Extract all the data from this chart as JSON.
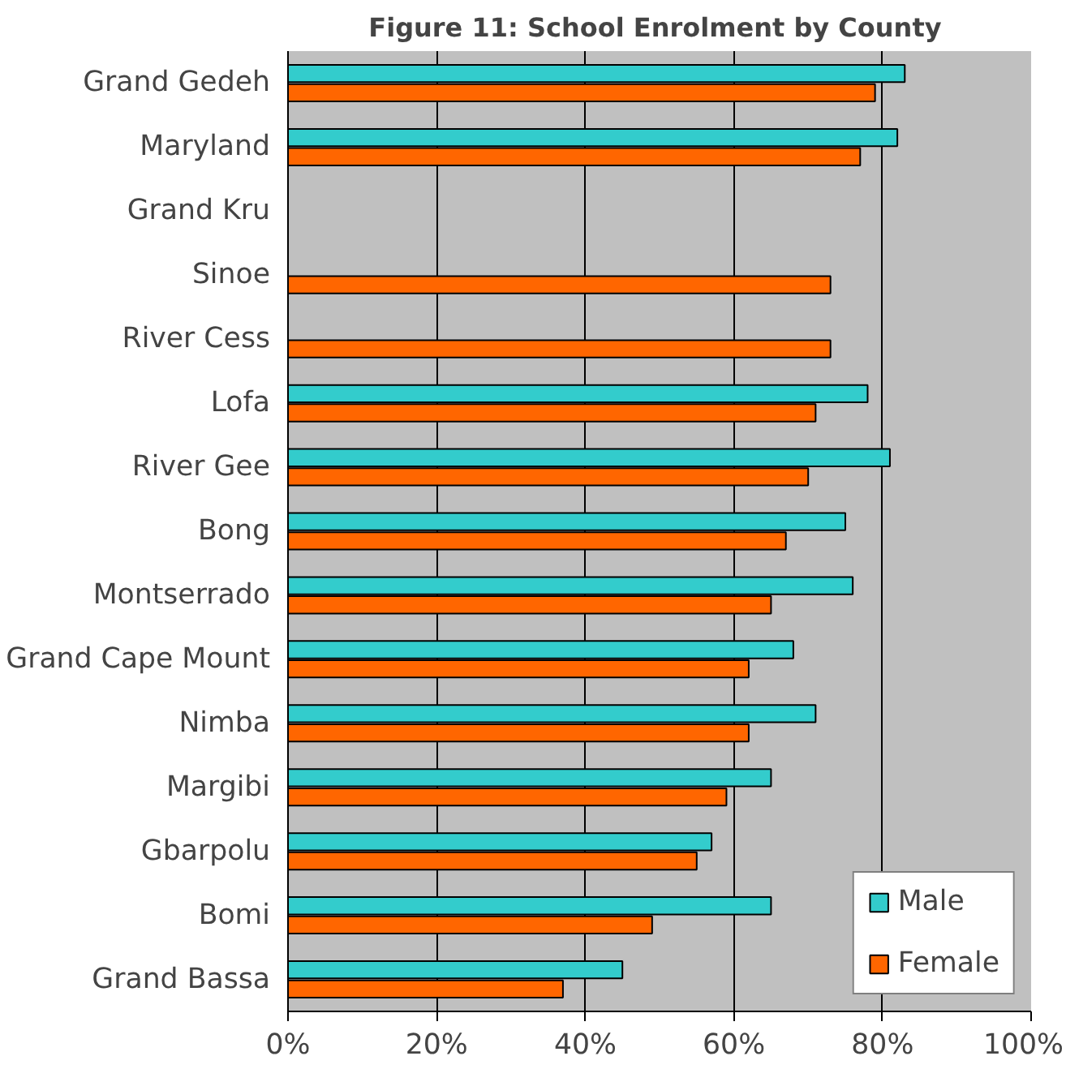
{
  "chart_data": {
    "type": "bar",
    "orientation": "horizontal",
    "title": "Figure 11:  School Enrolment by County",
    "categories": [
      "Grand Gedeh",
      "Maryland",
      "Grand Kru",
      "Sinoe",
      "River Cess",
      "Lofa",
      "River Gee",
      "Bong",
      "Montserrado",
      "Grand Cape Mount",
      "Nimba",
      "Margibi",
      "Gbarpolu",
      "Bomi",
      "Grand Bassa"
    ],
    "series": [
      {
        "name": "Male",
        "color": "#33cccc",
        "values": [
          83,
          82,
          null,
          null,
          null,
          78,
          81,
          75,
          76,
          68,
          71,
          65,
          57,
          65,
          45
        ]
      },
      {
        "name": "Female",
        "color": "#ff6600",
        "values": [
          79,
          77,
          null,
          73,
          73,
          71,
          70,
          67,
          65,
          62,
          62,
          59,
          55,
          49,
          37
        ]
      }
    ],
    "xlim": [
      0,
      100
    ],
    "xticks": [
      {
        "value": 0,
        "label": "0%"
      },
      {
        "value": 20,
        "label": "20%"
      },
      {
        "value": 40,
        "label": "40%"
      },
      {
        "value": 60,
        "label": "60%"
      },
      {
        "value": 80,
        "label": "80%"
      },
      {
        "value": 100,
        "label": "100%"
      }
    ],
    "grid": "x",
    "legend": "bottom right"
  }
}
